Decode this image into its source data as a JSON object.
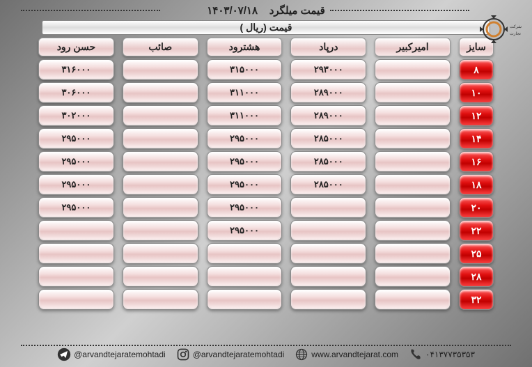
{
  "header": {
    "date": "۱۴۰۳/۰۷/۱۸",
    "title": "قیمت میلگرد"
  },
  "price_bar_label": "قیمت (ریال )",
  "columns": [
    "سایز",
    "امیرکبیر",
    "درپاد",
    "هشترود",
    "صائب",
    "حسن رود"
  ],
  "size_col_index": 0,
  "rows": [
    {
      "size": "۸",
      "cells": [
        "",
        "۲۹۳۰۰۰",
        "۳۱۵۰۰۰",
        "",
        "۳۱۶۰۰۰"
      ]
    },
    {
      "size": "۱۰",
      "cells": [
        "",
        "۲۸۹۰۰۰",
        "۳۱۱۰۰۰",
        "",
        "۳۰۶۰۰۰"
      ]
    },
    {
      "size": "۱۲",
      "cells": [
        "",
        "۲۸۹۰۰۰",
        "۳۱۱۰۰۰",
        "",
        "۳۰۲۰۰۰"
      ]
    },
    {
      "size": "۱۴",
      "cells": [
        "",
        "۲۸۵۰۰۰",
        "۲۹۵۰۰۰",
        "",
        "۲۹۵۰۰۰"
      ]
    },
    {
      "size": "۱۶",
      "cells": [
        "",
        "۲۸۵۰۰۰",
        "۲۹۵۰۰۰",
        "",
        "۲۹۵۰۰۰"
      ]
    },
    {
      "size": "۱۸",
      "cells": [
        "",
        "۲۸۵۰۰۰",
        "۲۹۵۰۰۰",
        "",
        "۲۹۵۰۰۰"
      ]
    },
    {
      "size": "۲۰",
      "cells": [
        "",
        "",
        "۲۹۵۰۰۰",
        "",
        "۲۹۵۰۰۰"
      ]
    },
    {
      "size": "۲۲",
      "cells": [
        "",
        "",
        "۲۹۵۰۰۰",
        "",
        ""
      ]
    },
    {
      "size": "۲۵",
      "cells": [
        "",
        "",
        "",
        "",
        ""
      ]
    },
    {
      "size": "۲۸",
      "cells": [
        "",
        "",
        "",
        "",
        ""
      ]
    },
    {
      "size": "۳۲",
      "cells": [
        "",
        "",
        "",
        "",
        ""
      ]
    }
  ],
  "footer": {
    "telegram": "@arvandtejaratemohtadi",
    "instagram": "@arvandtejaratemohtadi",
    "website": "www.arvandtejarat.com",
    "phone": "۰۴۱۳۷۷۳۵۳۵۳"
  },
  "colors": {
    "size_cell_bg": "#d01010",
    "cell_bg": "#f0dada",
    "text": "#222222"
  }
}
